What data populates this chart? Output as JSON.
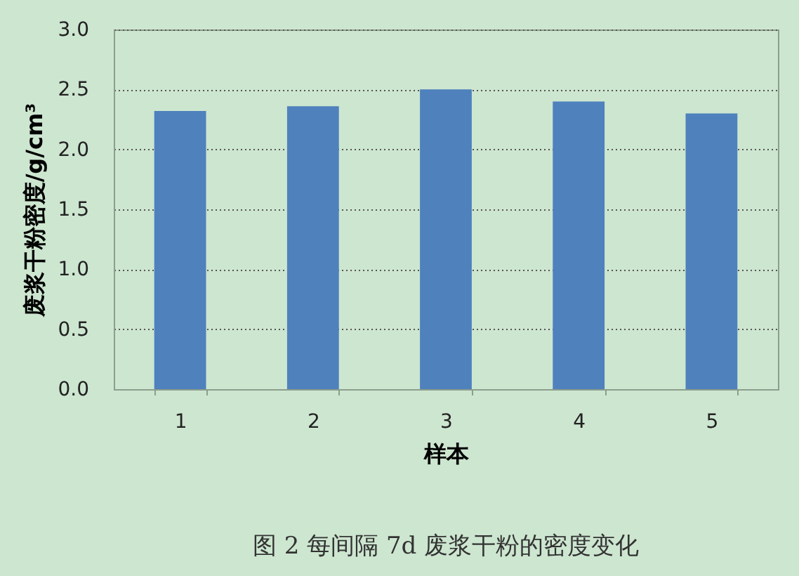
{
  "chart_data": {
    "type": "bar",
    "xlabel": "样本",
    "ylabel": "废浆干粉密度/g/cm³",
    "categories": [
      "1",
      "2",
      "3",
      "4",
      "5"
    ],
    "values": [
      2.32,
      2.36,
      2.5,
      2.4,
      2.3
    ],
    "color": "#4f81bd",
    "ylim": [
      0,
      3
    ],
    "yticks": [
      {
        "value": 0,
        "label": "0.0"
      },
      0.5,
      {
        "value": 1,
        "label": "1.0"
      },
      1.5,
      {
        "value": 2,
        "label": "2.0"
      },
      2.5,
      {
        "value": 3,
        "label": "3.0"
      }
    ],
    "grid": "y",
    "annotations": [
      "图 2 每间隔 7d 废浆干粉的密度变化"
    ]
  }
}
